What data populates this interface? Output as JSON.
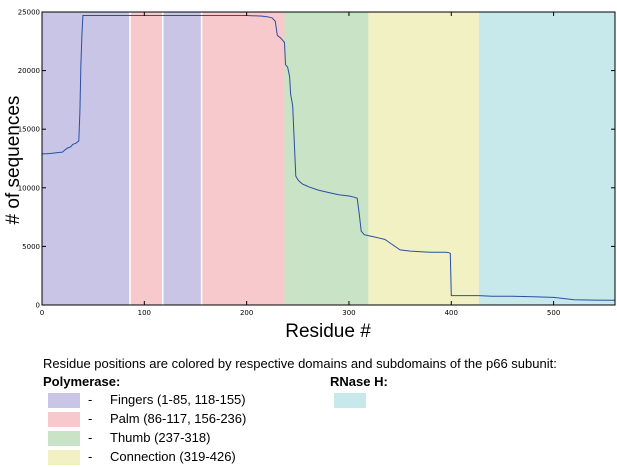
{
  "chart_data": {
    "type": "line",
    "xlabel": "Residue #",
    "ylabel": "# of sequences",
    "xlim": [
      0,
      560
    ],
    "ylim": [
      0,
      25000
    ],
    "xticks": [
      "0",
      "100",
      "200",
      "300",
      "400",
      "500"
    ],
    "yticks": [
      "0",
      "5000",
      "10000",
      "15000",
      "20000",
      "25000"
    ],
    "domain_bands": [
      {
        "domain": "fingers",
        "start": 0,
        "end": 86,
        "color": "#c9c5e6"
      },
      {
        "domain": "palm",
        "start": 86,
        "end": 118,
        "color": "#f7c8cc"
      },
      {
        "domain": "fingers",
        "start": 118,
        "end": 156,
        "color": "#c9c5e6"
      },
      {
        "domain": "palm",
        "start": 156,
        "end": 237,
        "color": "#f7c8cc"
      },
      {
        "domain": "thumb",
        "start": 237,
        "end": 319,
        "color": "#c8e3c5"
      },
      {
        "domain": "connection",
        "start": 319,
        "end": 427,
        "color": "#f1f1c4"
      },
      {
        "domain": "rnaseh",
        "start": 427,
        "end": 560,
        "color": "#c8e9ec"
      }
    ],
    "series": [
      {
        "color": "#2b4fa0",
        "x": [
          0,
          5,
          10,
          15,
          20,
          22,
          25,
          28,
          30,
          33,
          36,
          37,
          38,
          39,
          40,
          41,
          45,
          60,
          85,
          100,
          150,
          200,
          215,
          220,
          225,
          228,
          230,
          233,
          235,
          237,
          238,
          240,
          242,
          243,
          245,
          246,
          248,
          250,
          252,
          255,
          258,
          260,
          270,
          280,
          290,
          300,
          305,
          308,
          310,
          312,
          315,
          320,
          325,
          330,
          335,
          340,
          350,
          360,
          370,
          380,
          390,
          395,
          398,
          399,
          400,
          410,
          420,
          427,
          440,
          460,
          480,
          500,
          520,
          540,
          560
        ],
        "y": [
          12900,
          12900,
          12950,
          13000,
          13050,
          13200,
          13400,
          13500,
          13700,
          13800,
          14000,
          16500,
          20500,
          23000,
          24700,
          24700,
          24700,
          24700,
          24700,
          24700,
          24700,
          24700,
          24650,
          24600,
          24500,
          24200,
          23000,
          22800,
          22600,
          22400,
          20500,
          20300,
          19500,
          18000,
          17000,
          15000,
          11000,
          10700,
          10500,
          10300,
          10200,
          10100,
          9800,
          9600,
          9400,
          9300,
          9200,
          9100,
          7800,
          6300,
          6000,
          5900,
          5800,
          5700,
          5600,
          5300,
          4700,
          4600,
          4550,
          4500,
          4500,
          4500,
          4450,
          4400,
          800,
          800,
          800,
          800,
          750,
          750,
          700,
          650,
          450,
          420,
          400
        ]
      }
    ]
  },
  "legend": {
    "caption": "Residue positions are colored by respective domains and subdomains of the p66 subunit:",
    "polymerase_title": "Polymerase:",
    "rnase_title": "RNase H:",
    "dash": "-",
    "items": [
      {
        "label": "Fingers (1-85, 118-155)",
        "color": "#c9c5e6"
      },
      {
        "label": "Palm (86-117, 156-236)",
        "color": "#f7c8cc"
      },
      {
        "label": "Thumb (237-318)",
        "color": "#c8e3c5"
      },
      {
        "label": "Connection (319-426)",
        "color": "#f1f1c4"
      }
    ],
    "rnase_color": "#c8e9ec"
  }
}
